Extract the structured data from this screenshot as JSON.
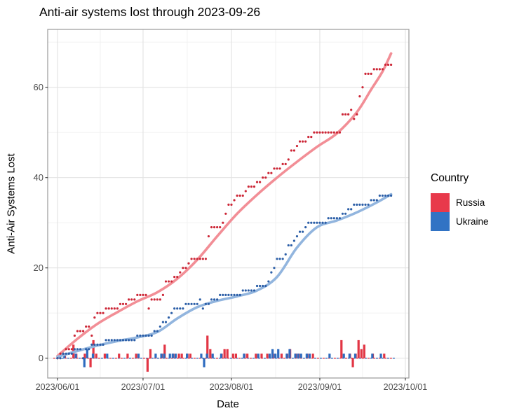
{
  "chart_data": {
    "type": "line+scatter+bar",
    "title": "Anti-air systems lost through 2023-09-26",
    "xlabel": "Date",
    "ylabel": "Anti-Air Systems Lost",
    "start_date_label": "2023/06/01",
    "x_tick_labels": [
      "2023/06/01",
      "2023/07/01",
      "2023/08/01",
      "2023/09/01",
      "2023/10/01"
    ],
    "x_tick_days": [
      0,
      30,
      61,
      92,
      122
    ],
    "x_minor_days": [
      15,
      45.5,
      76.5,
      107
    ],
    "y_tick_values": [
      0,
      20,
      40,
      60
    ],
    "y_minor_values": [
      10,
      30,
      50,
      70
    ],
    "grid": "on",
    "legend_position": "right",
    "legend": {
      "title": "Country",
      "entries": [
        {
          "label": "Russia",
          "color": "#e8394b"
        },
        {
          "label": "Ukraine",
          "color": "#3173c4"
        }
      ]
    },
    "colors": {
      "russia_point": "#cc2636",
      "russia_line": "#f28e96",
      "russia_bar": "#e23544",
      "ukraine_point": "#2b5ea7",
      "ukraine_line": "#92b5de",
      "ukraine_bar": "#2e6bbf",
      "grid_major": "#e2e2e2",
      "grid_minor": "#f0f0f0",
      "panel_border": "#9a9a9a",
      "tick_mark": "#333333"
    },
    "series": [
      {
        "name": "Russia",
        "cumulative": [
          0,
          1,
          1,
          2,
          2,
          2,
          5,
          6,
          6,
          6,
          7,
          7,
          5,
          9,
          10,
          10,
          10,
          11,
          11,
          11,
          11,
          11,
          12,
          12,
          12,
          13,
          13,
          13,
          14,
          14,
          14,
          14,
          11,
          13,
          13,
          13,
          13,
          14,
          17,
          17,
          17,
          18,
          18,
          19,
          20,
          20,
          21,
          22,
          22,
          22,
          22,
          22,
          22,
          27,
          29,
          29,
          29,
          29,
          30,
          32,
          34,
          34,
          35,
          36,
          36,
          36,
          37,
          38,
          38,
          38,
          39,
          39,
          40,
          40,
          41,
          41,
          42,
          42,
          42,
          43,
          43,
          44,
          46,
          46,
          47,
          48,
          48,
          48,
          49,
          49,
          50,
          50,
          50,
          50,
          50,
          50,
          50,
          50,
          50,
          50,
          54,
          54,
          54,
          55,
          53,
          54,
          58,
          60,
          63,
          63,
          63,
          64,
          64,
          64,
          64,
          65,
          65,
          65
        ],
        "smooth_days": [
          0,
          7,
          14,
          21,
          28,
          35,
          42,
          49,
          56,
          63,
          70,
          77,
          84,
          91,
          98,
          105,
          110,
          114,
          117
        ],
        "smooth_values": [
          0.5,
          4.3,
          7.6,
          10.2,
          12.6,
          14.6,
          17.6,
          21.8,
          27,
          32,
          36.2,
          40,
          43.5,
          46.8,
          49.8,
          54.5,
          59.5,
          63.5,
          67.5
        ],
        "daily_bars": [
          {
            "d": 1,
            "v": 1
          },
          {
            "d": 3,
            "v": 1
          },
          {
            "d": 6,
            "v": 3
          },
          {
            "d": 7,
            "v": 1
          },
          {
            "d": 10,
            "v": 1
          },
          {
            "d": 12,
            "v": -2
          },
          {
            "d": 13,
            "v": 4
          },
          {
            "d": 14,
            "v": 1
          },
          {
            "d": 17,
            "v": 1
          },
          {
            "d": 22,
            "v": 1
          },
          {
            "d": 25,
            "v": 1
          },
          {
            "d": 28,
            "v": 1
          },
          {
            "d": 32,
            "v": -3
          },
          {
            "d": 33,
            "v": 2
          },
          {
            "d": 37,
            "v": 1
          },
          {
            "d": 38,
            "v": 3
          },
          {
            "d": 41,
            "v": 1
          },
          {
            "d": 43,
            "v": 1
          },
          {
            "d": 44,
            "v": 1
          },
          {
            "d": 46,
            "v": 1
          },
          {
            "d": 47,
            "v": 1
          },
          {
            "d": 53,
            "v": 5
          },
          {
            "d": 54,
            "v": 2
          },
          {
            "d": 58,
            "v": 1
          },
          {
            "d": 59,
            "v": 2
          },
          {
            "d": 60,
            "v": 2
          },
          {
            "d": 62,
            "v": 1
          },
          {
            "d": 63,
            "v": 1
          },
          {
            "d": 66,
            "v": 1
          },
          {
            "d": 67,
            "v": 1
          },
          {
            "d": 70,
            "v": 1
          },
          {
            "d": 72,
            "v": 1
          },
          {
            "d": 74,
            "v": 1
          },
          {
            "d": 76,
            "v": 1
          },
          {
            "d": 79,
            "v": 1
          },
          {
            "d": 81,
            "v": 1
          },
          {
            "d": 82,
            "v": 2
          },
          {
            "d": 84,
            "v": 1
          },
          {
            "d": 85,
            "v": 1
          },
          {
            "d": 88,
            "v": 1
          },
          {
            "d": 90,
            "v": 1
          },
          {
            "d": 100,
            "v": 4
          },
          {
            "d": 103,
            "v": 1
          },
          {
            "d": 104,
            "v": -2
          },
          {
            "d": 105,
            "v": 1
          },
          {
            "d": 106,
            "v": 4
          },
          {
            "d": 107,
            "v": 2
          },
          {
            "d": 108,
            "v": 3
          },
          {
            "d": 111,
            "v": 1
          },
          {
            "d": 115,
            "v": 1
          }
        ]
      },
      {
        "name": "Ukraine",
        "cumulative": [
          0,
          0,
          1,
          1,
          1,
          1,
          2,
          2,
          2,
          0,
          2,
          2,
          3,
          3,
          3,
          3,
          3,
          4,
          4,
          4,
          4,
          4,
          4,
          4,
          4,
          4,
          4,
          4,
          5,
          5,
          5,
          5,
          5,
          5,
          6,
          6,
          7,
          8,
          8,
          9,
          10,
          11,
          11,
          11,
          11,
          12,
          12,
          12,
          12,
          12,
          13,
          11,
          12,
          12,
          13,
          13,
          13,
          14,
          14,
          14,
          14,
          14,
          14,
          14,
          14,
          15,
          15,
          15,
          15,
          15,
          16,
          16,
          16,
          16,
          17,
          19,
          20,
          22,
          22,
          22,
          23,
          25,
          25,
          26,
          27,
          28,
          28,
          29,
          30,
          30,
          30,
          30,
          30,
          30,
          30,
          31,
          31,
          31,
          31,
          31,
          32,
          32,
          33,
          33,
          34,
          34,
          34,
          34,
          34,
          34,
          35,
          35,
          35,
          36,
          36,
          36,
          36,
          36
        ],
        "smooth_days": [
          0,
          7,
          14,
          21,
          28,
          35,
          42,
          49,
          56,
          63,
          70,
          77,
          84,
          91,
          98,
          105,
          112,
          117
        ],
        "smooth_values": [
          0.3,
          1.6,
          2.8,
          3.8,
          4.6,
          5.8,
          8.8,
          11.3,
          12.7,
          13.7,
          15,
          18,
          24.5,
          29,
          30.5,
          32.3,
          34.5,
          36.3
        ],
        "daily_bars": [
          {
            "d": 2,
            "v": 1
          },
          {
            "d": 6,
            "v": 1
          },
          {
            "d": 9,
            "v": -2
          },
          {
            "d": 10,
            "v": 2
          },
          {
            "d": 12,
            "v": 1
          },
          {
            "d": 17,
            "v": 1
          },
          {
            "d": 28,
            "v": 1
          },
          {
            "d": 34,
            "v": 1
          },
          {
            "d": 36,
            "v": 1
          },
          {
            "d": 37,
            "v": 1
          },
          {
            "d": 39,
            "v": 1
          },
          {
            "d": 40,
            "v": 1
          },
          {
            "d": 41,
            "v": 1
          },
          {
            "d": 45,
            "v": 1
          },
          {
            "d": 50,
            "v": 1
          },
          {
            "d": 51,
            "v": -2
          },
          {
            "d": 52,
            "v": 1
          },
          {
            "d": 54,
            "v": 1
          },
          {
            "d": 57,
            "v": 1
          },
          {
            "d": 65,
            "v": 1
          },
          {
            "d": 70,
            "v": 1
          },
          {
            "d": 74,
            "v": 1
          },
          {
            "d": 75,
            "v": 2
          },
          {
            "d": 76,
            "v": 1
          },
          {
            "d": 77,
            "v": 2
          },
          {
            "d": 80,
            "v": 1
          },
          {
            "d": 81,
            "v": 2
          },
          {
            "d": 83,
            "v": 1
          },
          {
            "d": 84,
            "v": 1
          },
          {
            "d": 85,
            "v": 1
          },
          {
            "d": 87,
            "v": 1
          },
          {
            "d": 88,
            "v": 1
          },
          {
            "d": 95,
            "v": 1
          },
          {
            "d": 100,
            "v": 1
          },
          {
            "d": 102,
            "v": 1
          },
          {
            "d": 104,
            "v": 1
          },
          {
            "d": 110,
            "v": 1
          },
          {
            "d": 113,
            "v": 1
          }
        ]
      }
    ]
  }
}
